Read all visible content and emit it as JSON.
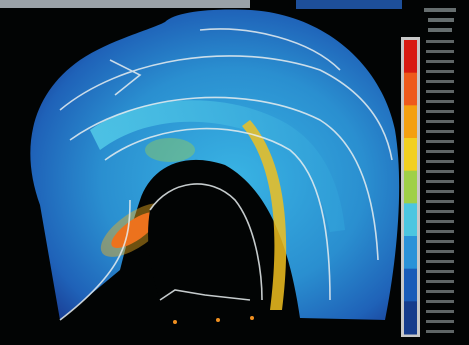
{
  "colorbar": {
    "colors": [
      "#d81a12",
      "#ee5a1c",
      "#f4a010",
      "#f2d020",
      "#9fd048",
      "#4cc6e0",
      "#2a92d8",
      "#1a5cb8",
      "#163c8c"
    ]
  }
}
